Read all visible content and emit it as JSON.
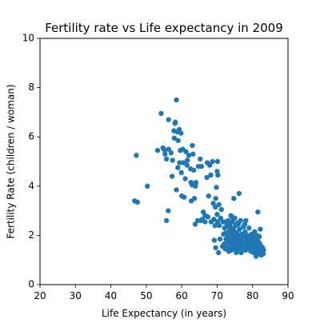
{
  "chart_data": {
    "type": "scatter",
    "title": "Fertility rate vs Life expectancy in 2009",
    "xlabel": "Life Expectancy (in years)",
    "ylabel": "Fertility Rate (children / woman)",
    "xlim": [
      20,
      90
    ],
    "ylim": [
      0,
      10
    ],
    "xticks": [
      20,
      30,
      40,
      50,
      60,
      70,
      80,
      90
    ],
    "yticks": [
      0,
      2,
      4,
      6,
      8,
      10
    ],
    "grid": false,
    "marker_color": "#1f77b4",
    "series": [
      {
        "points": [
          [
            46.7,
            3.4
          ],
          [
            47.2,
            5.25
          ],
          [
            47.5,
            3.35
          ],
          [
            50.3,
            4.0
          ],
          [
            53.2,
            5.45
          ],
          [
            54.2,
            6.95
          ],
          [
            54.7,
            5.55
          ],
          [
            55.2,
            5.45
          ],
          [
            55.3,
            5.3
          ],
          [
            55.7,
            5.1
          ],
          [
            55.7,
            2.6
          ],
          [
            56.2,
            3.0
          ],
          [
            56.3,
            6.7
          ],
          [
            56.3,
            5.5
          ],
          [
            57.0,
            5.35
          ],
          [
            57.3,
            4.4
          ],
          [
            57.4,
            5.05
          ],
          [
            57.8,
            6.25
          ],
          [
            57.9,
            5.95
          ],
          [
            58.1,
            6.55
          ],
          [
            58.2,
            6.6
          ],
          [
            58.5,
            3.85
          ],
          [
            58.5,
            7.5
          ],
          [
            58.7,
            6.2
          ],
          [
            58.9,
            4.75
          ],
          [
            59.0,
            5.85
          ],
          [
            59.3,
            6.3
          ],
          [
            59.4,
            4.95
          ],
          [
            59.6,
            5.45
          ],
          [
            59.8,
            6.15
          ],
          [
            59.9,
            4.55
          ],
          [
            60.0,
            3.6
          ],
          [
            60.3,
            5.5
          ],
          [
            60.4,
            4.95
          ],
          [
            60.7,
            3.55
          ],
          [
            61.0,
            4.3
          ],
          [
            61.2,
            5.4
          ],
          [
            61.5,
            4.85
          ],
          [
            61.6,
            5.05
          ],
          [
            62.0,
            5.25
          ],
          [
            62.5,
            4.7
          ],
          [
            62.6,
            4.15
          ],
          [
            62.7,
            3.4
          ],
          [
            62.9,
            4.05
          ],
          [
            63.0,
            5.65
          ],
          [
            63.2,
            5.3
          ],
          [
            63.4,
            4.65
          ],
          [
            63.6,
            3.5
          ],
          [
            63.8,
            2.45
          ],
          [
            63.9,
            4.0
          ],
          [
            64.0,
            4.15
          ],
          [
            64.5,
            2.6
          ],
          [
            64.7,
            4.8
          ],
          [
            65.2,
            5.1
          ],
          [
            65.4,
            2.6
          ],
          [
            65.6,
            4.8
          ],
          [
            65.8,
            2.65
          ],
          [
            66.1,
            2.95
          ],
          [
            66.6,
            2.55
          ],
          [
            66.6,
            2.8
          ],
          [
            67.1,
            4.35
          ],
          [
            67.2,
            4.95
          ],
          [
            67.4,
            2.75
          ],
          [
            67.6,
            3.6
          ],
          [
            67.9,
            4.85
          ],
          [
            68.2,
            4.45
          ],
          [
            68.3,
            2.55
          ],
          [
            68.7,
            5.0
          ],
          [
            68.9,
            3.3
          ],
          [
            69.1,
            2.65
          ],
          [
            69.2,
            1.8
          ],
          [
            69.4,
            2.4
          ],
          [
            69.5,
            3.15
          ],
          [
            69.6,
            3.5
          ],
          [
            69.8,
            3.95
          ],
          [
            70.0,
            4.6
          ],
          [
            70.1,
            5.0
          ],
          [
            70.2,
            4.45
          ],
          [
            69.6,
            1.5
          ],
          [
            70.0,
            2.85
          ],
          [
            70.2,
            2.55
          ],
          [
            70.4,
            1.3
          ],
          [
            70.5,
            3.25
          ],
          [
            70.6,
            2.4
          ],
          [
            70.8,
            1.85
          ],
          [
            71.0,
            2.7
          ],
          [
            71.2,
            3.05
          ],
          [
            71.5,
            1.55
          ],
          [
            71.7,
            2.55
          ],
          [
            72.0,
            1.65
          ],
          [
            72.1,
            2.3
          ],
          [
            72.3,
            1.45
          ],
          [
            72.4,
            2.1
          ],
          [
            72.5,
            1.85
          ],
          [
            72.6,
            2.5
          ],
          [
            72.7,
            1.7
          ],
          [
            72.8,
            2.35
          ],
          [
            72.9,
            1.5
          ],
          [
            73.0,
            2.0
          ],
          [
            73.1,
            2.6
          ],
          [
            73.2,
            1.95
          ],
          [
            73.3,
            1.35
          ],
          [
            73.4,
            2.15
          ],
          [
            73.5,
            1.75
          ],
          [
            73.6,
            2.45
          ],
          [
            73.7,
            1.55
          ],
          [
            73.8,
            1.9
          ],
          [
            73.9,
            2.8
          ],
          [
            74.0,
            1.4
          ],
          [
            74.0,
            2.25
          ],
          [
            74.1,
            1.65
          ],
          [
            74.2,
            2.05
          ],
          [
            74.3,
            2.55
          ],
          [
            74.4,
            1.85
          ],
          [
            74.5,
            1.5
          ],
          [
            74.6,
            2.3
          ],
          [
            74.7,
            3.5
          ],
          [
            74.8,
            1.75
          ],
          [
            74.9,
            2.15
          ],
          [
            75.0,
            1.45
          ],
          [
            75.0,
            2.7
          ],
          [
            75.1,
            1.95
          ],
          [
            75.2,
            2.4
          ],
          [
            75.3,
            1.6
          ],
          [
            75.4,
            1.3
          ],
          [
            75.5,
            2.1
          ],
          [
            75.6,
            1.8
          ],
          [
            75.7,
            2.5
          ],
          [
            75.8,
            1.55
          ],
          [
            75.9,
            1.35
          ],
          [
            76.0,
            2.0
          ],
          [
            76.1,
            1.7
          ],
          [
            76.2,
            3.7
          ],
          [
            76.3,
            2.25
          ],
          [
            76.4,
            1.45
          ],
          [
            76.5,
            1.9
          ],
          [
            76.6,
            2.6
          ],
          [
            76.7,
            1.6
          ],
          [
            76.8,
            1.3
          ],
          [
            76.9,
            2.05
          ],
          [
            77.0,
            1.75
          ],
          [
            77.2,
            1.5
          ],
          [
            77.4,
            2.35
          ],
          [
            77.5,
            1.95
          ],
          [
            77.7,
            1.65
          ],
          [
            77.9,
            2.15
          ],
          [
            78.0,
            1.4
          ],
          [
            78.1,
            2.6
          ],
          [
            78.2,
            1.85
          ],
          [
            78.4,
            1.55
          ],
          [
            78.5,
            2.0
          ],
          [
            78.7,
            1.75
          ],
          [
            78.9,
            1.45
          ],
          [
            79.0,
            2.3
          ],
          [
            79.2,
            1.9
          ],
          [
            79.4,
            1.6
          ],
          [
            79.5,
            1.35
          ],
          [
            79.7,
            2.05
          ],
          [
            79.9,
            1.75
          ],
          [
            80.0,
            1.5
          ],
          [
            80.2,
            1.95
          ],
          [
            80.3,
            1.3
          ],
          [
            80.5,
            1.65
          ],
          [
            80.6,
            2.15
          ],
          [
            80.8,
            1.4
          ],
          [
            80.9,
            1.85
          ],
          [
            81.0,
            1.15
          ],
          [
            81.1,
            1.6
          ],
          [
            81.3,
            2.0
          ],
          [
            81.4,
            1.35
          ],
          [
            81.5,
            2.95
          ],
          [
            81.6,
            1.75
          ],
          [
            81.7,
            1.5
          ],
          [
            81.8,
            1.25
          ],
          [
            81.9,
            1.95
          ],
          [
            82.0,
            1.4
          ],
          [
            82.1,
            1.65
          ],
          [
            82.2,
            2.25
          ],
          [
            82.3,
            1.3
          ],
          [
            82.4,
            1.55
          ],
          [
            82.5,
            1.2
          ],
          [
            82.6,
            1.45
          ],
          [
            82.7,
            1.35
          ],
          [
            82.8,
            1.5
          ],
          [
            83.0,
            1.25
          ],
          [
            83.1,
            1.4
          ],
          [
            72.3,
            2.55
          ],
          [
            74.2,
            2.75
          ],
          [
            76.0,
            2.45
          ],
          [
            71.8,
            2.05
          ],
          [
            73.5,
            2.35
          ],
          [
            75.5,
            1.65
          ],
          [
            77.8,
            2.45
          ]
        ]
      }
    ]
  }
}
